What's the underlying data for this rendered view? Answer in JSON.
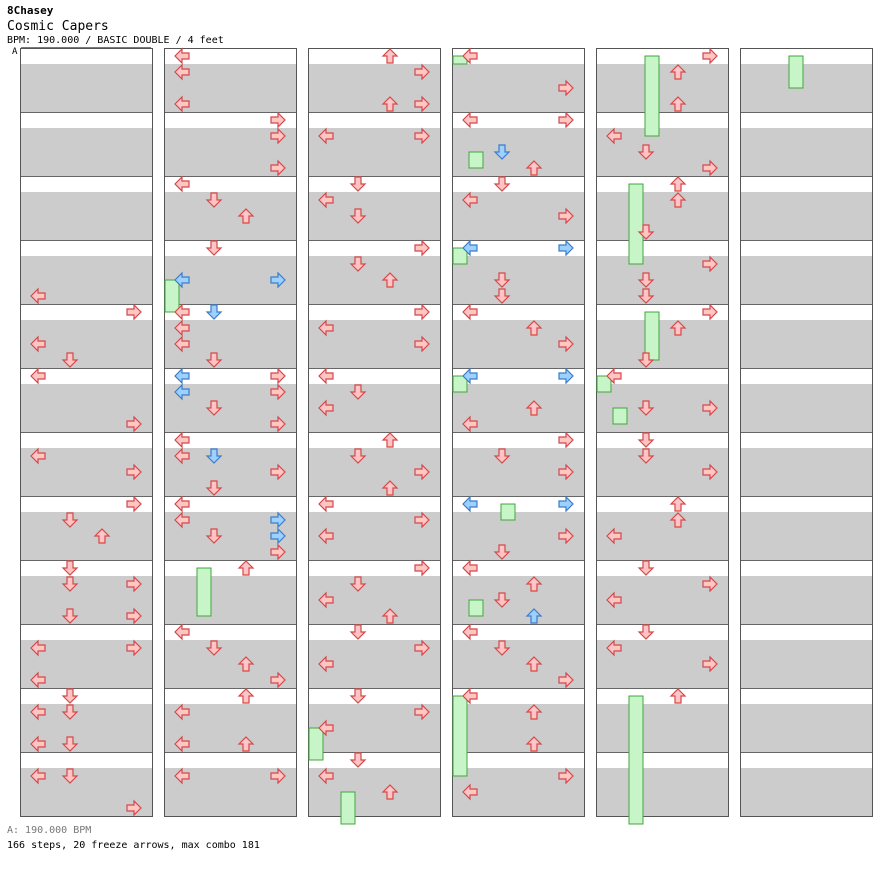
{
  "header": {
    "artist": "8Chasey",
    "title": "Cosmic Capers",
    "info": "BPM: 190.000 / BASIC DOUBLE / 4 feet"
  },
  "marker_label": "A",
  "footer": {
    "bpm_line": "A: 190.000 BPM",
    "stats": "166 steps, 20 freeze arrows, max combo 181"
  },
  "colors": {
    "stripe": "#cccccc",
    "border": "#555555",
    "red_fill": "#ffc4c4",
    "red_stroke": "#d44848",
    "blue_fill": "#9ed0ff",
    "blue_stroke": "#3a7cc8",
    "freeze_fill": "#c8f5c8",
    "freeze_stroke": "#3fa83f"
  },
  "chart_data": {
    "type": "step-chart",
    "lanes": 8,
    "rows_per_column": 48,
    "columns": [
      {
        "notes": [
          [
            0,
            15,
            "r",
            "L"
          ],
          [
            0,
            16,
            "r",
            "R"
          ],
          [
            0,
            18,
            "r",
            "L"
          ],
          [
            0,
            19,
            "r",
            "D"
          ],
          [
            0,
            20,
            "r",
            "L"
          ],
          [
            0,
            23,
            "r",
            "R"
          ],
          [
            0,
            25,
            "r",
            "L"
          ],
          [
            0,
            26,
            "r",
            "R"
          ],
          [
            0,
            28,
            "r",
            "R"
          ],
          [
            0,
            29,
            "r",
            "D"
          ],
          [
            0,
            30,
            "r",
            "U"
          ],
          [
            0,
            32,
            "r",
            "D"
          ],
          [
            0,
            33,
            "r",
            "R"
          ],
          [
            0,
            33,
            "r",
            "D"
          ],
          [
            0,
            35,
            "r",
            "R"
          ],
          [
            0,
            35,
            "r",
            "D"
          ],
          [
            0,
            37,
            "r",
            "R"
          ],
          [
            0,
            37,
            "r",
            "L"
          ],
          [
            0,
            39,
            "r",
            "L"
          ],
          [
            0,
            40,
            "r",
            "D"
          ],
          [
            0,
            41,
            "r",
            "D"
          ],
          [
            0,
            41,
            "r",
            "L"
          ],
          [
            0,
            43,
            "r",
            "D"
          ],
          [
            0,
            43,
            "r",
            "L"
          ],
          [
            0,
            45,
            "r",
            "D"
          ],
          [
            0,
            45,
            "r",
            "L"
          ],
          [
            0,
            47,
            "r",
            "R"
          ]
        ],
        "freezes": []
      },
      {
        "notes": [
          [
            1,
            0,
            "r",
            "L"
          ],
          [
            1,
            1,
            "r",
            "L"
          ],
          [
            1,
            3,
            "r",
            "L"
          ],
          [
            1,
            4,
            "r",
            "R"
          ],
          [
            1,
            5,
            "r",
            "R"
          ],
          [
            1,
            7,
            "r",
            "R"
          ],
          [
            1,
            8,
            "r",
            "L"
          ],
          [
            1,
            9,
            "r",
            "D"
          ],
          [
            1,
            10,
            "r",
            "U"
          ],
          [
            1,
            12,
            "r",
            "D"
          ],
          [
            1,
            14,
            "b",
            "L"
          ],
          [
            1,
            14,
            "b",
            "R"
          ],
          [
            1,
            16,
            "b",
            "D"
          ],
          [
            1,
            16,
            "r",
            "L"
          ],
          [
            1,
            17,
            "r",
            "L"
          ],
          [
            1,
            18,
            "r",
            "L"
          ],
          [
            1,
            19,
            "r",
            "D"
          ],
          [
            1,
            20,
            "r",
            "R"
          ],
          [
            1,
            20,
            "b",
            "L"
          ],
          [
            1,
            21,
            "r",
            "R"
          ],
          [
            1,
            21,
            "b",
            "L"
          ],
          [
            1,
            22,
            "r",
            "D"
          ],
          [
            1,
            23,
            "r",
            "R"
          ],
          [
            1,
            24,
            "r",
            "L"
          ],
          [
            1,
            25,
            "r",
            "L"
          ],
          [
            1,
            25,
            "b",
            "D"
          ],
          [
            1,
            26,
            "r",
            "R"
          ],
          [
            1,
            27,
            "r",
            "D"
          ],
          [
            1,
            28,
            "r",
            "L"
          ],
          [
            1,
            29,
            "b",
            "R"
          ],
          [
            1,
            29,
            "r",
            "L"
          ],
          [
            1,
            30,
            "b",
            "R"
          ],
          [
            1,
            30,
            "r",
            "D"
          ],
          [
            1,
            31,
            "r",
            "R"
          ],
          [
            1,
            32,
            "r",
            "U"
          ],
          [
            1,
            36,
            "r",
            "L"
          ],
          [
            1,
            37,
            "r",
            "D"
          ],
          [
            1,
            38,
            "r",
            "U"
          ],
          [
            1,
            39,
            "r",
            "R"
          ],
          [
            1,
            40,
            "r",
            "U"
          ],
          [
            1,
            41,
            "r",
            "L"
          ],
          [
            1,
            43,
            "r",
            "U"
          ],
          [
            1,
            43,
            "r",
            "L"
          ],
          [
            1,
            45,
            "r",
            "R"
          ],
          [
            1,
            45,
            "r",
            "L"
          ]
        ],
        "freezes": [
          [
            1,
            14,
            16
          ],
          [
            1,
            14,
            16
          ],
          [
            1,
            32,
            35
          ]
        ]
      },
      {
        "notes": [
          [
            2,
            0,
            "r",
            "U"
          ],
          [
            2,
            1,
            "r",
            "R"
          ],
          [
            2,
            3,
            "r",
            "R"
          ],
          [
            2,
            3,
            "r",
            "U"
          ],
          [
            2,
            5,
            "r",
            "R"
          ],
          [
            2,
            5,
            "r",
            "L"
          ],
          [
            2,
            8,
            "r",
            "D"
          ],
          [
            2,
            9,
            "r",
            "L"
          ],
          [
            2,
            10,
            "r",
            "D"
          ],
          [
            2,
            12,
            "r",
            "R"
          ],
          [
            2,
            13,
            "r",
            "D"
          ],
          [
            2,
            14,
            "r",
            "U"
          ],
          [
            2,
            16,
            "r",
            "R"
          ],
          [
            2,
            17,
            "r",
            "L"
          ],
          [
            2,
            18,
            "r",
            "R"
          ],
          [
            2,
            20,
            "r",
            "L"
          ],
          [
            2,
            21,
            "r",
            "D"
          ],
          [
            2,
            22,
            "r",
            "L"
          ],
          [
            2,
            24,
            "r",
            "U"
          ],
          [
            2,
            25,
            "r",
            "D"
          ],
          [
            2,
            26,
            "r",
            "R"
          ],
          [
            2,
            27,
            "r",
            "U"
          ],
          [
            2,
            28,
            "r",
            "L"
          ],
          [
            2,
            29,
            "r",
            "R"
          ],
          [
            2,
            30,
            "r",
            "L"
          ],
          [
            2,
            32,
            "r",
            "R"
          ],
          [
            2,
            33,
            "r",
            "D"
          ],
          [
            2,
            34,
            "r",
            "L"
          ],
          [
            2,
            35,
            "r",
            "U"
          ],
          [
            2,
            36,
            "r",
            "D"
          ],
          [
            2,
            37,
            "r",
            "R"
          ],
          [
            2,
            38,
            "r",
            "L"
          ],
          [
            2,
            40,
            "r",
            "D"
          ],
          [
            2,
            41,
            "r",
            "R"
          ],
          [
            2,
            42,
            "r",
            "L"
          ],
          [
            2,
            44,
            "r",
            "D"
          ],
          [
            2,
            45,
            "r",
            "L"
          ],
          [
            2,
            46,
            "r",
            "U"
          ]
        ],
        "freezes": [
          [
            2,
            42,
            44
          ],
          [
            2,
            46,
            48
          ]
        ]
      },
      {
        "notes": [
          [
            3,
            0,
            "r",
            "L"
          ],
          [
            3,
            2,
            "r",
            "R"
          ],
          [
            3,
            4,
            "r",
            "R"
          ],
          [
            3,
            4,
            "r",
            "L"
          ],
          [
            3,
            6,
            "b",
            "D"
          ],
          [
            3,
            7,
            "r",
            "U"
          ],
          [
            3,
            8,
            "r",
            "D"
          ],
          [
            3,
            9,
            "r",
            "L"
          ],
          [
            3,
            10,
            "r",
            "R"
          ],
          [
            3,
            12,
            "b",
            "L"
          ],
          [
            3,
            12,
            "b",
            "R"
          ],
          [
            3,
            14,
            "r",
            "D"
          ],
          [
            3,
            15,
            "r",
            "D"
          ],
          [
            3,
            16,
            "r",
            "L"
          ],
          [
            3,
            17,
            "r",
            "U"
          ],
          [
            3,
            18,
            "r",
            "R"
          ],
          [
            3,
            20,
            "b",
            "L"
          ],
          [
            3,
            20,
            "b",
            "R"
          ],
          [
            3,
            22,
            "r",
            "U"
          ],
          [
            3,
            23,
            "r",
            "L"
          ],
          [
            3,
            24,
            "r",
            "R"
          ],
          [
            3,
            25,
            "r",
            "D"
          ],
          [
            3,
            26,
            "r",
            "R"
          ],
          [
            3,
            28,
            "b",
            "R"
          ],
          [
            3,
            28,
            "b",
            "L"
          ],
          [
            3,
            30,
            "r",
            "R"
          ],
          [
            3,
            31,
            "r",
            "D"
          ],
          [
            3,
            32,
            "r",
            "L"
          ],
          [
            3,
            33,
            "r",
            "U"
          ],
          [
            3,
            34,
            "r",
            "D"
          ],
          [
            3,
            35,
            "b",
            "U"
          ],
          [
            3,
            36,
            "r",
            "L"
          ],
          [
            3,
            37,
            "r",
            "D"
          ],
          [
            3,
            38,
            "r",
            "U"
          ],
          [
            3,
            39,
            "r",
            "R"
          ],
          [
            3,
            40,
            "r",
            "L"
          ],
          [
            3,
            41,
            "r",
            "U"
          ],
          [
            3,
            43,
            "r",
            "U"
          ],
          [
            3,
            45,
            "r",
            "R"
          ],
          [
            3,
            46,
            "r",
            "L"
          ]
        ],
        "freezes": [
          [
            3,
            0,
            0
          ],
          [
            3,
            6,
            7
          ],
          [
            3,
            12,
            13
          ],
          [
            3,
            12,
            13
          ],
          [
            3,
            20,
            21
          ],
          [
            3,
            20,
            21
          ],
          [
            3,
            28,
            29
          ],
          [
            3,
            28,
            29
          ],
          [
            3,
            34,
            35
          ],
          [
            3,
            40,
            45
          ]
        ]
      },
      {
        "notes": [
          [
            4,
            0,
            "r",
            "R"
          ],
          [
            4,
            1,
            "r",
            "U"
          ],
          [
            4,
            3,
            "r",
            "U"
          ],
          [
            4,
            5,
            "r",
            "L"
          ],
          [
            4,
            6,
            "r",
            "D"
          ],
          [
            4,
            7,
            "r",
            "R"
          ],
          [
            4,
            9,
            "r",
            "U"
          ],
          [
            4,
            11,
            "r",
            "D"
          ],
          [
            4,
            8,
            "r",
            "U"
          ],
          [
            4,
            13,
            "r",
            "R"
          ],
          [
            4,
            14,
            "r",
            "D"
          ],
          [
            4,
            15,
            "r",
            "D"
          ],
          [
            4,
            16,
            "r",
            "R"
          ],
          [
            4,
            17,
            "r",
            "U"
          ],
          [
            4,
            19,
            "r",
            "D"
          ],
          [
            4,
            20,
            "r",
            "L"
          ],
          [
            4,
            22,
            "r",
            "D"
          ],
          [
            4,
            24,
            "r",
            "D"
          ],
          [
            4,
            25,
            "r",
            "D"
          ],
          [
            4,
            26,
            "r",
            "R"
          ],
          [
            4,
            28,
            "r",
            "U"
          ],
          [
            4,
            29,
            "r",
            "U"
          ],
          [
            4,
            30,
            "r",
            "L"
          ],
          [
            4,
            32,
            "r",
            "D"
          ],
          [
            4,
            33,
            "r",
            "R"
          ],
          [
            4,
            34,
            "r",
            "L"
          ],
          [
            4,
            36,
            "r",
            "D"
          ],
          [
            4,
            37,
            "r",
            "L"
          ],
          [
            4,
            38,
            "r",
            "R"
          ],
          [
            4,
            40,
            "r",
            "U"
          ],
          [
            4,
            22,
            "r",
            "R"
          ]
        ],
        "freezes": [
          [
            4,
            0,
            5
          ],
          [
            4,
            8,
            13
          ],
          [
            4,
            16,
            19
          ],
          [
            4,
            20,
            21
          ],
          [
            4,
            22,
            23
          ],
          [
            4,
            40,
            48
          ]
        ]
      },
      {
        "notes": [],
        "freezes": [
          [
            5,
            0,
            2
          ]
        ]
      }
    ]
  }
}
